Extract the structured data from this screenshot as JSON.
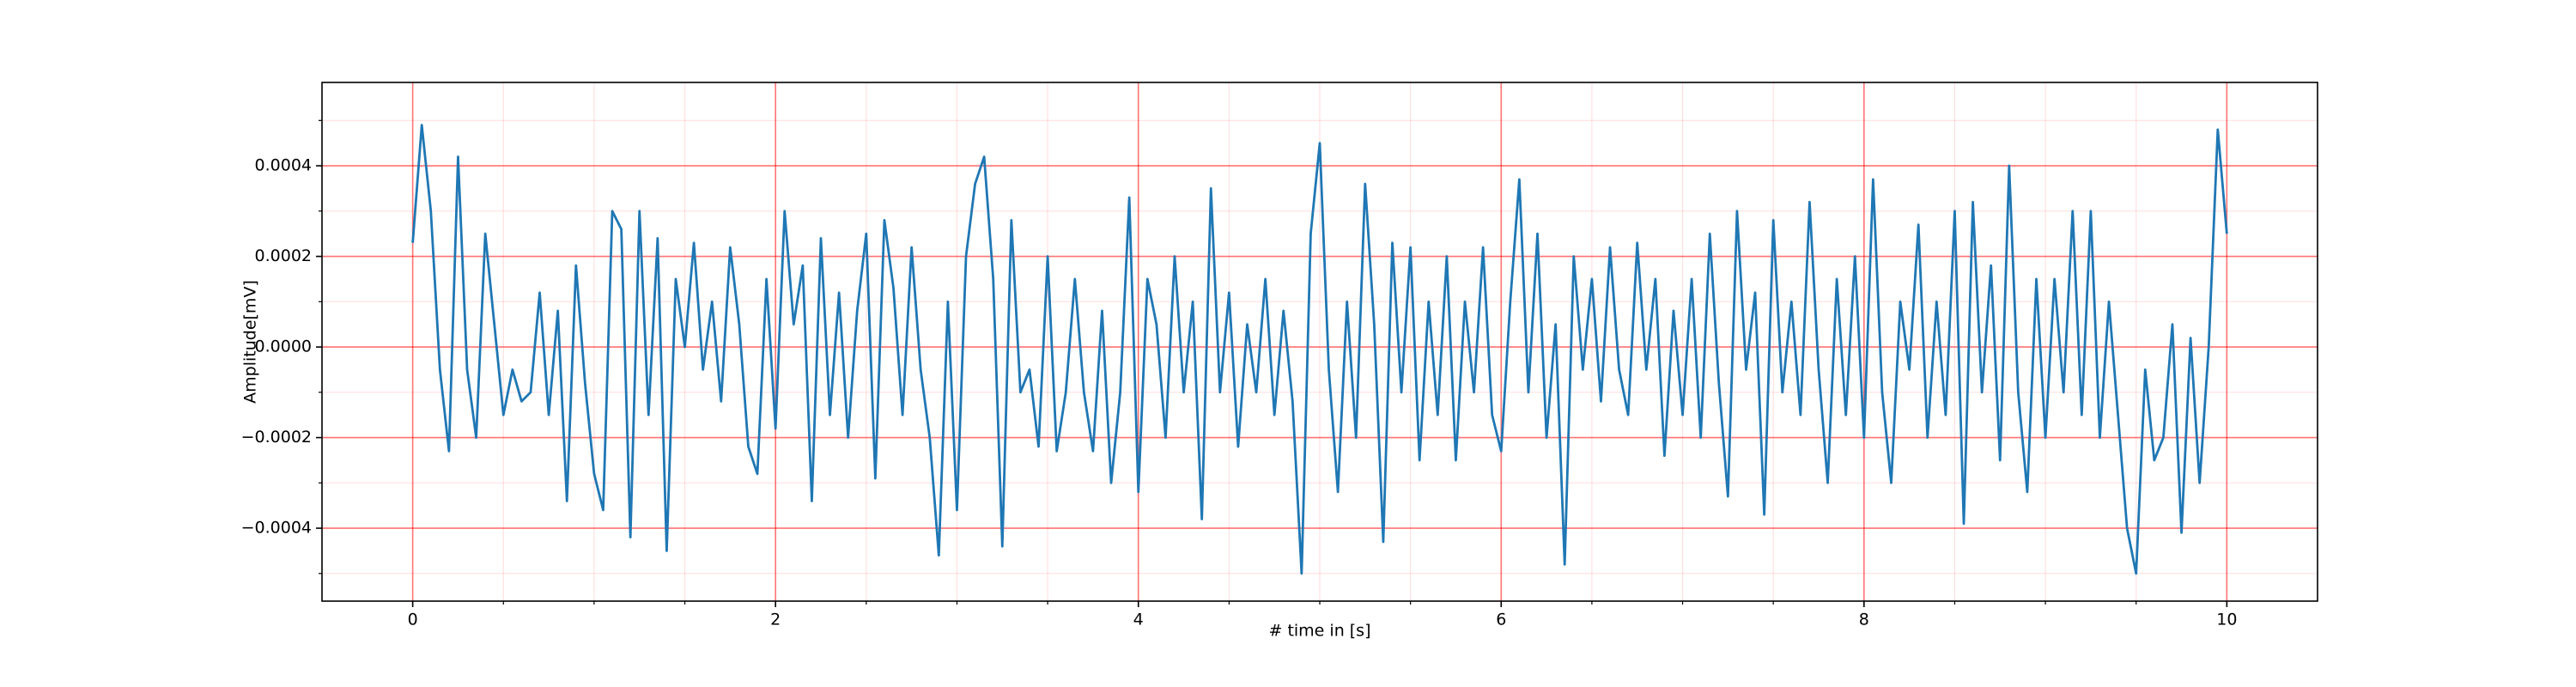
{
  "chart_data": {
    "type": "line",
    "xlabel": "# time in [s]",
    "ylabel": "Amplitude[mV]",
    "color": "#1f77b4",
    "grid": true,
    "grid_color": "#ff0000",
    "xlim": [
      -0.5,
      10.5
    ],
    "ylim": [
      -0.000561,
      0.000584
    ],
    "xticks": [
      0,
      2,
      4,
      6,
      8,
      10
    ],
    "yticks": [
      {
        "value": -0.0004,
        "label": "−0.0004"
      },
      {
        "value": -0.0002,
        "label": "−0.0002"
      },
      {
        "value": 0,
        "label": "0.0000"
      },
      {
        "value": 0.0002,
        "label": "0.0002"
      },
      {
        "value": 0.0004,
        "label": "0.0004"
      }
    ],
    "xminorticks": [
      0.5,
      1,
      1.5,
      2.5,
      3,
      3.5,
      4.5,
      5,
      5.5,
      6.5,
      7,
      7.5,
      8.5,
      9,
      9.5
    ],
    "yminorticks": [
      -0.0005,
      -0.0003,
      -0.0001,
      0.0001,
      0.0003,
      0.0005
    ],
    "x": [
      0,
      0.05,
      0.1,
      0.15,
      0.2,
      0.25,
      0.3,
      0.35,
      0.4,
      0.45,
      0.5,
      0.55,
      0.6,
      0.65,
      0.7,
      0.75,
      0.8,
      0.85,
      0.9,
      0.95,
      1,
      1.05,
      1.1,
      1.15,
      1.2,
      1.25,
      1.3,
      1.35,
      1.4,
      1.45,
      1.5,
      1.55,
      1.6,
      1.65,
      1.7,
      1.75,
      1.8,
      1.85,
      1.9,
      1.95,
      2,
      2.05,
      2.1,
      2.15,
      2.2,
      2.25,
      2.3,
      2.35,
      2.4,
      2.45,
      2.5,
      2.55,
      2.6,
      2.65,
      2.7,
      2.75,
      2.8,
      2.85,
      2.9,
      2.95,
      3,
      3.05,
      3.1,
      3.15,
      3.2,
      3.25,
      3.3,
      3.35,
      3.4,
      3.45,
      3.5,
      3.55,
      3.6,
      3.65,
      3.7,
      3.75,
      3.8,
      3.85,
      3.9,
      3.95,
      4,
      4.05,
      4.1,
      4.15,
      4.2,
      4.25,
      4.3,
      4.35,
      4.4,
      4.45,
      4.5,
      4.55,
      4.6,
      4.65,
      4.7,
      4.75,
      4.8,
      4.85,
      4.9,
      4.95,
      5,
      5.05,
      5.1,
      5.15,
      5.2,
      5.25,
      5.3,
      5.35,
      5.4,
      5.45,
      5.5,
      5.55,
      5.6,
      5.65,
      5.7,
      5.75,
      5.8,
      5.85,
      5.9,
      5.95,
      6,
      6.05,
      6.1,
      6.15,
      6.2,
      6.25,
      6.3,
      6.35,
      6.4,
      6.45,
      6.5,
      6.55,
      6.6,
      6.65,
      6.7,
      6.75,
      6.8,
      6.85,
      6.9,
      6.95,
      7,
      7.05,
      7.1,
      7.15,
      7.2,
      7.25,
      7.3,
      7.35,
      7.4,
      7.45,
      7.5,
      7.55,
      7.6,
      7.65,
      7.7,
      7.75,
      7.8,
      7.85,
      7.9,
      7.95,
      8,
      8.05,
      8.1,
      8.15,
      8.2,
      8.25,
      8.3,
      8.35,
      8.4,
      8.45,
      8.5,
      8.55,
      8.6,
      8.65,
      8.7,
      8.75,
      8.8,
      8.85,
      8.9,
      8.95,
      9,
      9.05,
      9.1,
      9.15,
      9.2,
      9.25,
      9.3,
      9.35,
      9.4,
      9.45,
      9.5,
      9.55,
      9.6,
      9.65,
      9.7,
      9.75,
      9.8,
      9.85,
      9.9,
      9.95,
      10
    ],
    "values": [
      0.00023,
      0.00049,
      0.0003,
      -5e-05,
      -0.00023,
      0.00042,
      -5e-05,
      -0.0002,
      0.00025,
      5e-05,
      -0.00015,
      -5e-05,
      -0.00012,
      -0.0001,
      0.00012,
      -0.00015,
      8e-05,
      -0.00034,
      0.00018,
      -8e-05,
      -0.00028,
      -0.00036,
      0.0003,
      0.00026,
      -0.00042,
      0.0003,
      -0.00015,
      0.00024,
      -0.00045,
      0.00015,
      0,
      0.00023,
      -5e-05,
      0.0001,
      -0.00012,
      0.00022,
      5e-05,
      -0.00022,
      -0.00028,
      0.00015,
      -0.00018,
      0.0003,
      5e-05,
      0.00018,
      -0.00034,
      0.00024,
      -0.00015,
      0.00012,
      -0.0002,
      8e-05,
      0.00025,
      -0.00029,
      0.00028,
      0.00013,
      -0.00015,
      0.00022,
      -5e-05,
      -0.0002,
      -0.00046,
      0.0001,
      -0.00036,
      0.0002,
      0.00036,
      0.00042,
      0.00015,
      -0.00044,
      0.00028,
      -0.0001,
      -5e-05,
      -0.00022,
      0.0002,
      -0.00023,
      -0.0001,
      0.00015,
      -0.0001,
      -0.00023,
      8e-05,
      -0.0003,
      -0.0001,
      0.00033,
      -0.00032,
      0.00015,
      5e-05,
      -0.0002,
      0.0002,
      -0.0001,
      0.0001,
      -0.00038,
      0.00035,
      -0.0001,
      0.00012,
      -0.00022,
      5e-05,
      -0.0001,
      0.00015,
      -0.00015,
      8e-05,
      -0.00012,
      -0.0005,
      0.00025,
      0.00045,
      -5e-05,
      -0.00032,
      0.0001,
      -0.0002,
      0.00036,
      5e-05,
      -0.00043,
      0.00023,
      -0.0001,
      0.00022,
      -0.00025,
      0.0001,
      -0.00015,
      0.0002,
      -0.00025,
      0.0001,
      -0.0001,
      0.00022,
      -0.00015,
      -0.00023,
      0.0001,
      0.00037,
      -0.0001,
      0.00025,
      -0.0002,
      5e-05,
      -0.00048,
      0.0002,
      -5e-05,
      0.00015,
      -0.00012,
      0.00022,
      -5e-05,
      -0.00015,
      0.00023,
      -5e-05,
      0.00015,
      -0.00024,
      8e-05,
      -0.00015,
      0.00015,
      -0.0002,
      0.00025,
      -8e-05,
      -0.00033,
      0.0003,
      -5e-05,
      0.00012,
      -0.00037,
      0.00028,
      -0.0001,
      0.0001,
      -0.00015,
      0.00032,
      -5e-05,
      -0.0003,
      0.00015,
      -0.00015,
      0.0002,
      -0.0002,
      0.00037,
      -0.0001,
      -0.0003,
      0.0001,
      -5e-05,
      0.00027,
      -0.0002,
      0.0001,
      -0.00015,
      0.0003,
      -0.00039,
      0.00032,
      -0.0001,
      0.00018,
      -0.00025,
      0.0004,
      -0.0001,
      -0.00032,
      0.00015,
      -0.0002,
      0.00015,
      -0.0001,
      0.0003,
      -0.00015,
      0.0003,
      -0.0002,
      0.0001,
      -0.00015,
      -0.0004,
      -0.0005,
      -5e-05,
      -0.00025,
      -0.0002,
      5e-05,
      -0.00041,
      2e-05,
      -0.0003,
      0,
      0.00048,
      0.00025
    ]
  }
}
